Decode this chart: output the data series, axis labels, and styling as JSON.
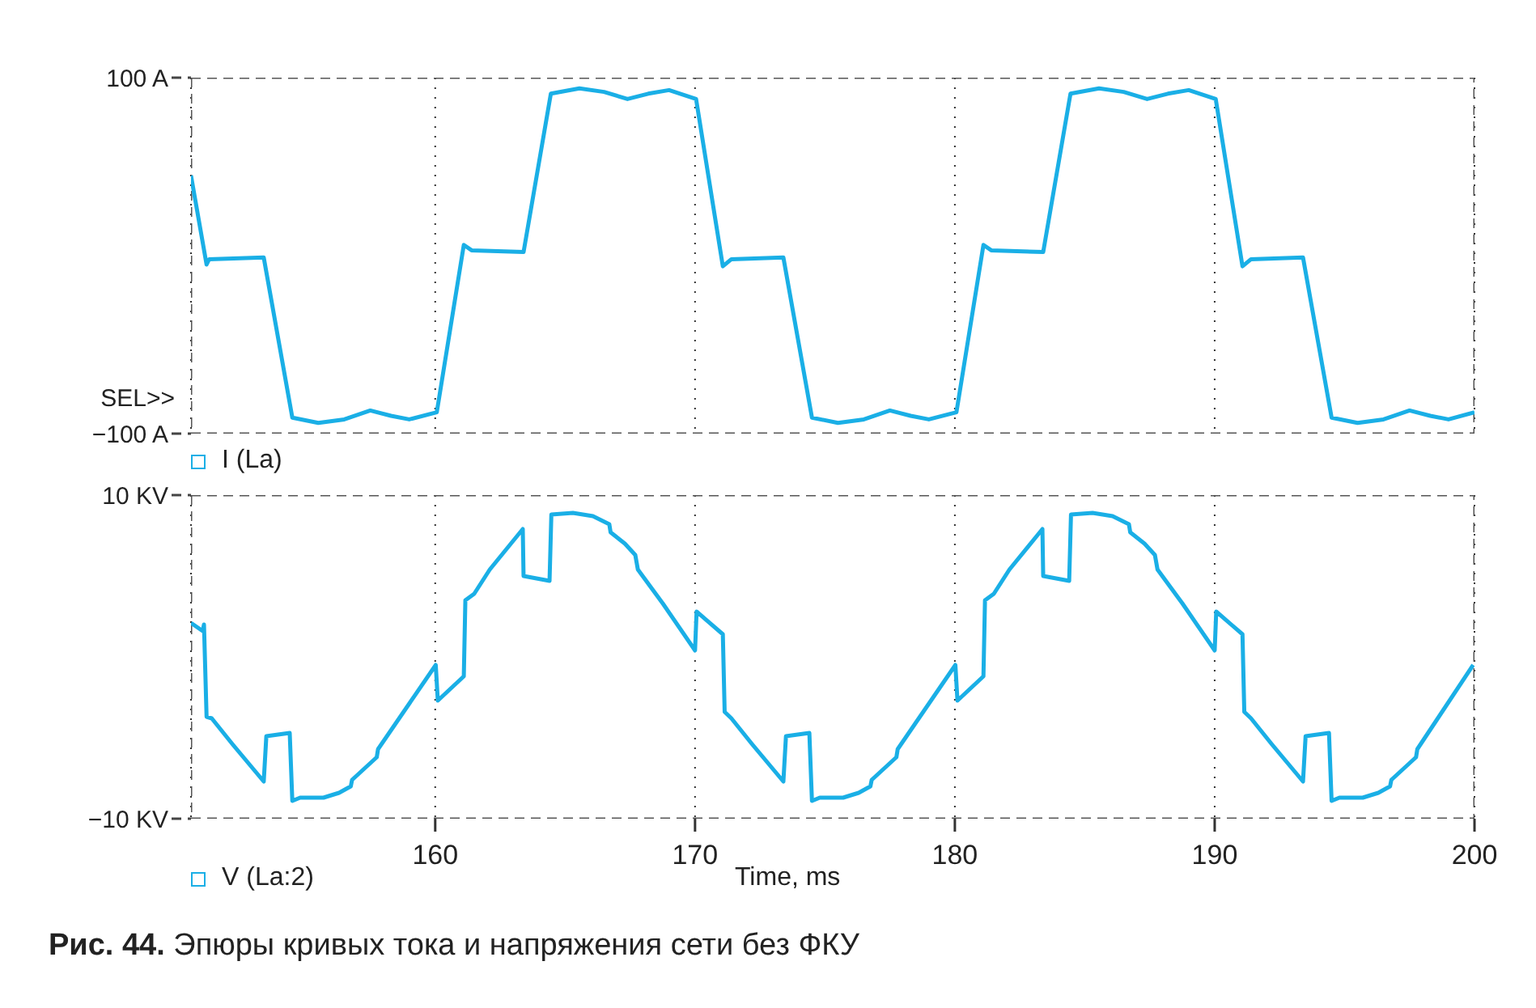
{
  "chart_data": [
    {
      "type": "line",
      "annotations": [
        "SEL>>"
      ],
      "legend": "bottom left",
      "grid": "x",
      "line_style": "solid",
      "tick_labels": "y",
      "xlim": [
        150.6,
        200
      ],
      "xticks": [
        160,
        170,
        180,
        190,
        200
      ],
      "ylim": [
        -100,
        100
      ],
      "yticks": [
        {
          "value": -100,
          "label": "−100 A"
        },
        {
          "value": 100,
          "label": "100 A"
        }
      ],
      "x": [
        150.6,
        151.2,
        151.3,
        153.4,
        154.5,
        155.5,
        156.5,
        157.5,
        158.3,
        159,
        160.06,
        161.1,
        161.4,
        163.4,
        164.45,
        165.55,
        166.5,
        167.4,
        168.2,
        169,
        170.04,
        171.07,
        171.4,
        173.4,
        174.5,
        175.5,
        176.5,
        177.5,
        178.3,
        179,
        180.06,
        181.1,
        181.4,
        183.4,
        184.45,
        185.55,
        186.5,
        187.4,
        188.2,
        189,
        190.04,
        191.07,
        191.4,
        193.4,
        194.5,
        195.5,
        196.5,
        197.5,
        198.3,
        199,
        200
      ],
      "series": [
        {
          "name": "I (La)",
          "color": "#1aafe6",
          "values": [
            45,
            -5,
            -2,
            -1,
            -91,
            -94,
            -92,
            -87,
            -90,
            -92,
            -88,
            6,
            3,
            2,
            91,
            94,
            92,
            88,
            91,
            93,
            88,
            -6,
            -2,
            -1,
            -91,
            -94,
            -92,
            -87,
            -90,
            -92,
            -88,
            6,
            3,
            2,
            91,
            94,
            92,
            88,
            91,
            93,
            88,
            -6,
            -2,
            -1,
            -91,
            -94,
            -92,
            -87,
            -90,
            -92,
            -88
          ]
        }
      ]
    },
    {
      "type": "line",
      "xlabel": "Time, ms",
      "annotations": [
        "Рис. 44. Эпюры кривых тока и напряжения сети без ФКУ"
      ],
      "legend": "bottom left",
      "grid": "x",
      "line_style": "solid",
      "xlim": [
        150.6,
        200
      ],
      "xticks": [
        160,
        170,
        180,
        190,
        200
      ],
      "ylim": [
        -10,
        10
      ],
      "yticks": [
        {
          "value": -10,
          "label": "−10 KV"
        },
        {
          "value": 10,
          "label": "10 KV"
        }
      ],
      "x": [
        150.6,
        151.05,
        151.1,
        151.2,
        151.4,
        152.2,
        153.4,
        153.5,
        154.4,
        154.5,
        154.8,
        155.7,
        156.3,
        156.75,
        156.8,
        157.75,
        157.8,
        160.02,
        160.1,
        161.1,
        161.16,
        161.5,
        162.1,
        163.37,
        163.4,
        164.4,
        164.47,
        165.3,
        166.07,
        166.7,
        166.75,
        167.3,
        167.7,
        167.8,
        168.76,
        170.0,
        170.06,
        171.07,
        171.14,
        171.4,
        172.2,
        173.4,
        173.5,
        174.4,
        174.5,
        174.8,
        175.7,
        176.3,
        176.75,
        176.8,
        177.75,
        177.8,
        180.02,
        180.1,
        181.1,
        181.16,
        181.5,
        182.1,
        183.37,
        183.4,
        184.4,
        184.47,
        185.3,
        186.07,
        186.7,
        186.75,
        187.3,
        187.7,
        187.8,
        188.76,
        190.0,
        190.06,
        191.07,
        191.14,
        191.4,
        192.2,
        193.4,
        193.5,
        194.4,
        194.5,
        194.8,
        195.7,
        196.3,
        196.75,
        196.8,
        197.75,
        197.8,
        199.95
      ],
      "series": [
        {
          "name": "V (La:2)",
          "color": "#1aafe6",
          "values": [
            2.1,
            1.6,
            2.0,
            -3.7,
            -3.8,
            -5.4,
            -7.7,
            -4.9,
            -4.7,
            -8.9,
            -8.7,
            -8.7,
            -8.4,
            -8.0,
            -7.6,
            -6.2,
            -5.7,
            -0.5,
            -2.7,
            -1.2,
            3.5,
            3.9,
            5.4,
            7.9,
            5.0,
            4.7,
            8.8,
            8.9,
            8.7,
            8.2,
            7.7,
            7.0,
            6.3,
            5.4,
            3.3,
            0.4,
            2.8,
            1.4,
            -3.4,
            -3.8,
            -5.4,
            -7.7,
            -4.9,
            -4.7,
            -8.9,
            -8.7,
            -8.7,
            -8.4,
            -8.0,
            -7.6,
            -6.2,
            -5.7,
            -0.5,
            -2.7,
            -1.2,
            3.5,
            3.9,
            5.4,
            7.9,
            5.0,
            4.7,
            8.8,
            8.9,
            8.7,
            8.2,
            7.7,
            7.0,
            6.3,
            5.4,
            3.3,
            0.4,
            2.8,
            1.4,
            -3.4,
            -3.8,
            -5.4,
            -7.7,
            -4.9,
            -4.7,
            -8.9,
            -8.7,
            -8.7,
            -8.4,
            -8.0,
            -7.6,
            -6.2,
            -5.7,
            -0.5
          ]
        }
      ]
    }
  ]
}
